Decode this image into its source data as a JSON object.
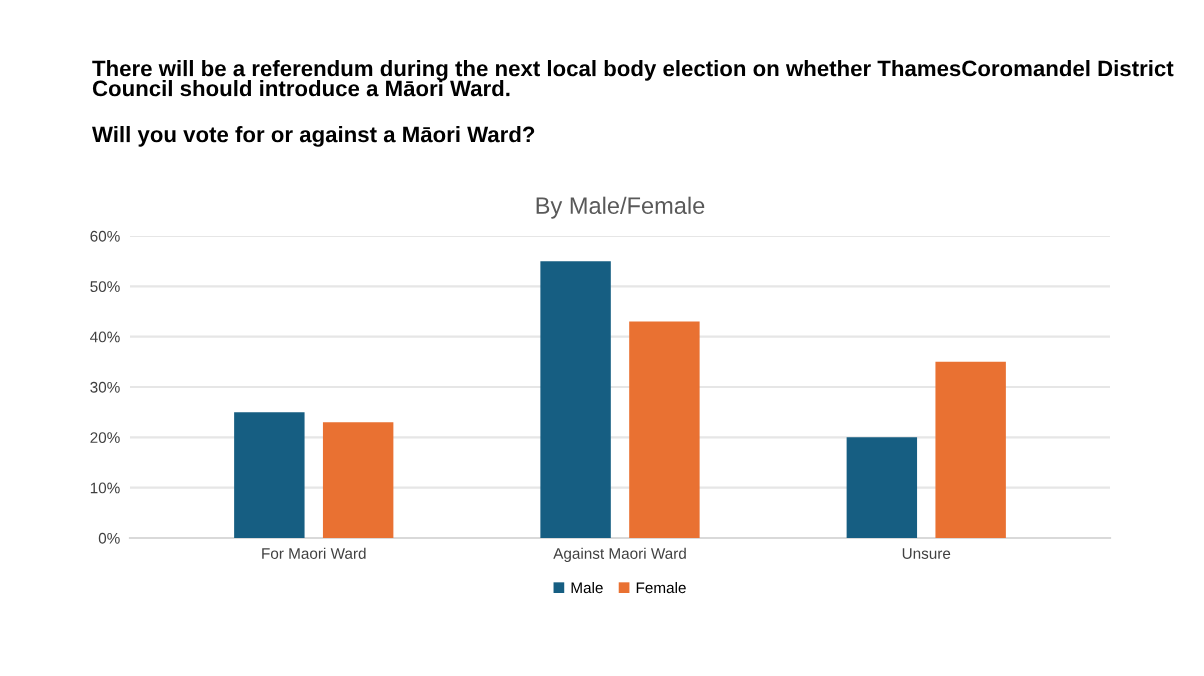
{
  "chart_data": {
    "type": "bar",
    "title": "By Male/Female",
    "annotations": [
      "There will be a referendum during the next local body election on whether ThamesCoromandel District Council should introduce a Māori Ward.",
      "Will you vote for or against a Māori Ward?"
    ],
    "categories": [
      "For Maori Ward",
      "Against Maori Ward",
      "Unsure"
    ],
    "series": [
      {
        "name": "Male",
        "color": "#165e82",
        "values": [
          25,
          55,
          20
        ]
      },
      {
        "name": "Female",
        "color": "#e97132",
        "values": [
          23,
          43,
          35
        ]
      }
    ],
    "ylim": [
      0,
      60
    ],
    "yticks": [
      {
        "value": 0,
        "label": "0%"
      },
      {
        "value": 10,
        "label": "10%"
      },
      {
        "value": 20,
        "label": "20%"
      },
      {
        "value": 30,
        "label": "30%"
      },
      {
        "value": 40,
        "label": "40%"
      },
      {
        "value": 50,
        "label": "50%"
      },
      {
        "value": 60,
        "label": "60%"
      }
    ],
    "grid": "y",
    "legend": "bottom"
  }
}
